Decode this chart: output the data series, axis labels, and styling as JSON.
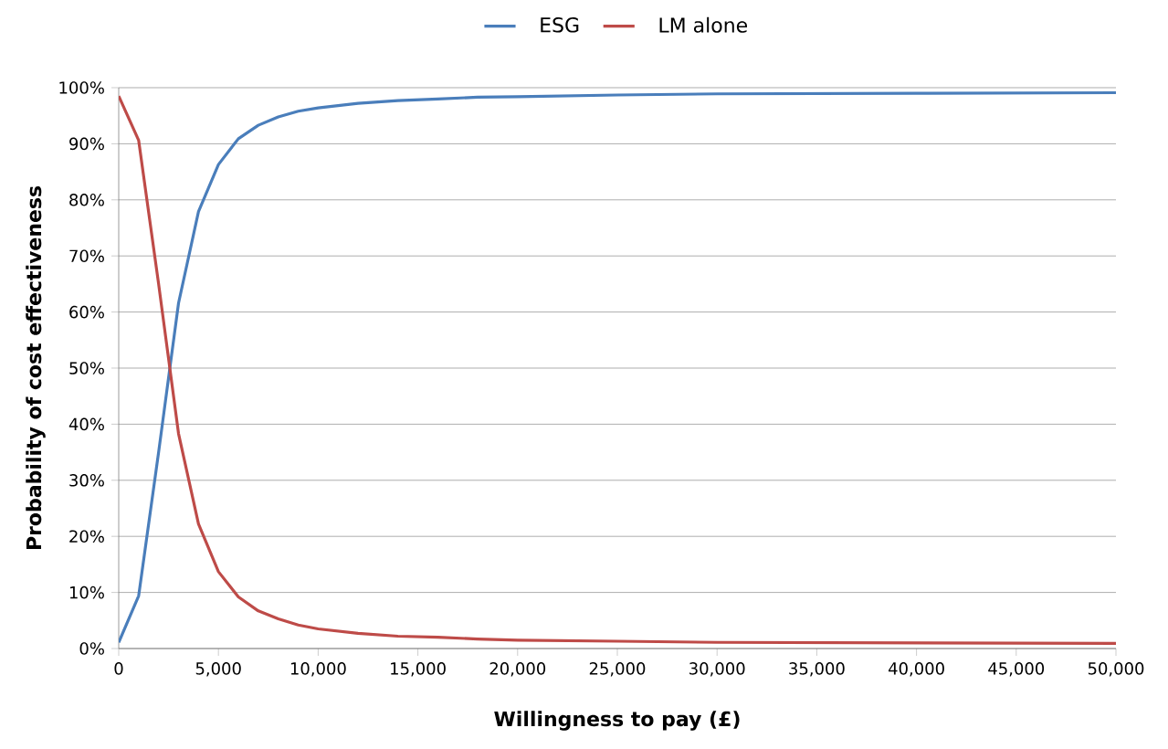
{
  "chart_data": {
    "type": "line",
    "xlabel": "Willingness to pay (£)",
    "ylabel": "Probability of cost effectiveness",
    "xlim": [
      0,
      50000
    ],
    "ylim": [
      0,
      100
    ],
    "xticks": [
      0,
      {
        "value": 5000,
        "label": "5,000"
      },
      {
        "value": 10000,
        "label": "10,000"
      },
      {
        "value": 15000,
        "label": "15,000"
      },
      {
        "value": 20000,
        "label": "20,000"
      },
      {
        "value": 25000,
        "label": "25,000"
      },
      {
        "value": 30000,
        "label": "30,000"
      },
      {
        "value": 35000,
        "label": "35,000"
      },
      {
        "value": 40000,
        "label": "40,000"
      },
      {
        "value": 45000,
        "label": "45,000"
      },
      {
        "value": 50000,
        "label": "50,000"
      }
    ],
    "yticks": [
      {
        "value": 0,
        "label": "0%"
      },
      {
        "value": 10,
        "label": "10%"
      },
      {
        "value": 20,
        "label": "20%"
      },
      {
        "value": 30,
        "label": "30%"
      },
      {
        "value": 40,
        "label": "40%"
      },
      {
        "value": 50,
        "label": "50%"
      },
      {
        "value": 60,
        "label": "60%"
      },
      {
        "value": 70,
        "label": "70%"
      },
      {
        "value": 80,
        "label": "80%"
      },
      {
        "value": 90,
        "label": "90%"
      },
      {
        "value": 100,
        "label": "100%"
      }
    ],
    "x": [
      0,
      1000,
      2000,
      3000,
      4000,
      5000,
      6000,
      7000,
      8000,
      9000,
      10000,
      12000,
      14000,
      16000,
      18000,
      20000,
      25000,
      30000,
      40000,
      50000
    ],
    "series": [
      {
        "name": "ESG",
        "color": "#4a7ebb",
        "values": [
          1.1,
          9.4,
          35,
          61.6,
          77.9,
          86.3,
          90.9,
          93.3,
          94.8,
          95.8,
          96.4,
          97.2,
          97.7,
          98.0,
          98.3,
          98.4,
          98.7,
          98.9,
          99.0,
          99.1
        ]
      },
      {
        "name": "LM alone",
        "color": "#be4b48",
        "values": [
          98.5,
          90.6,
          65,
          38.3,
          22.2,
          13.7,
          9.2,
          6.7,
          5.3,
          4.2,
          3.5,
          2.7,
          2.2,
          2.0,
          1.7,
          1.5,
          1.3,
          1.1,
          1.0,
          0.9
        ]
      }
    ],
    "grid": "y",
    "legend": "top",
    "marker": "none",
    "line_style": "solid"
  }
}
